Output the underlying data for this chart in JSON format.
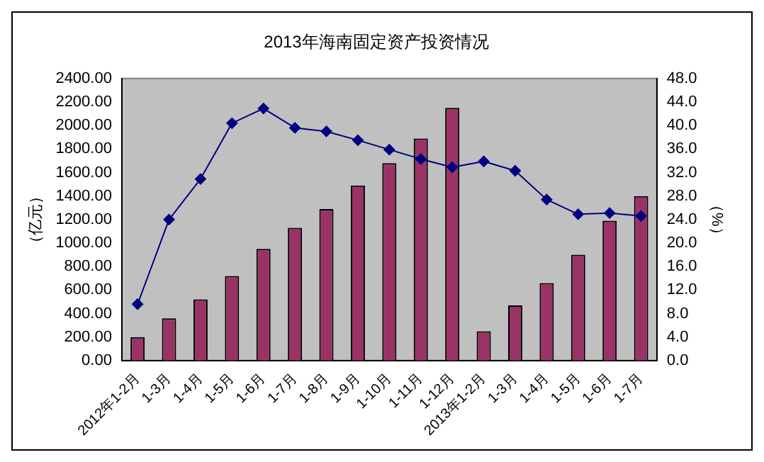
{
  "chart_data": {
    "type": "bar",
    "title": "2013年海南固定资产投资情况",
    "ylabel": "（亿元）",
    "y2label": "（%）",
    "categories": [
      "2012年1-2月",
      "1-3月",
      "1-4月",
      "1-5月",
      "1-6月",
      "1-7月",
      "1-8月",
      "1-9月",
      "1-10月",
      "1-11月",
      "1-12月",
      "2013年1-2月",
      "1-3月",
      "1-4月",
      "1-5月",
      "1-6月",
      "1-7月"
    ],
    "series": [
      {
        "color": "#993366",
        "values": [
          200,
          360,
          520,
          720,
          950,
          1130,
          1290,
          1490,
          1680,
          1890,
          2150,
          250,
          470,
          660,
          900,
          1190,
          1400
        ]
      },
      {
        "type": "line",
        "axis": "y2",
        "color": "#000080",
        "marker": "diamond",
        "line_style": "solid",
        "values": [
          9.6,
          24.0,
          30.9,
          40.4,
          42.9,
          39.6,
          39.0,
          37.5,
          35.9,
          34.3,
          32.9,
          33.9,
          32.3,
          27.4,
          24.9,
          25.1,
          24.6
        ]
      }
    ],
    "ylim": [
      0,
      2400
    ],
    "yticks": [
      {
        "value": 0,
        "label": "0.00"
      },
      {
        "value": 200,
        "label": "200.00"
      },
      {
        "value": 400,
        "label": "400.00"
      },
      {
        "value": 600,
        "label": "600.00"
      },
      {
        "value": 800,
        "label": "800.00"
      },
      {
        "value": 1000,
        "label": "1000.00"
      },
      {
        "value": 1200,
        "label": "1200.00"
      },
      {
        "value": 1400,
        "label": "1400.00"
      },
      {
        "value": 1600,
        "label": "1600.00"
      },
      {
        "value": 1800,
        "label": "1800.00"
      },
      {
        "value": 2000,
        "label": "2000.00"
      },
      {
        "value": 2200,
        "label": "2200.00"
      },
      {
        "value": 2400,
        "label": "2400.00"
      }
    ],
    "y2lim": [
      0,
      48
    ],
    "y2ticks": [
      {
        "value": 0,
        "label": "0.0"
      },
      {
        "value": 4,
        "label": "4.0"
      },
      {
        "value": 8,
        "label": "8.0"
      },
      {
        "value": 12,
        "label": "12.0"
      },
      {
        "value": 16,
        "label": "16.0"
      },
      {
        "value": 20,
        "label": "20.0"
      },
      {
        "value": 24,
        "label": "24.0"
      },
      {
        "value": 28,
        "label": "28.0"
      },
      {
        "value": 32,
        "label": "32.0"
      },
      {
        "value": 36,
        "label": "36.0"
      },
      {
        "value": 40,
        "label": "40.0"
      },
      {
        "value": 44,
        "label": "44.0"
      },
      {
        "value": 48,
        "label": "48.0"
      }
    ],
    "grid": false,
    "legend": false
  }
}
